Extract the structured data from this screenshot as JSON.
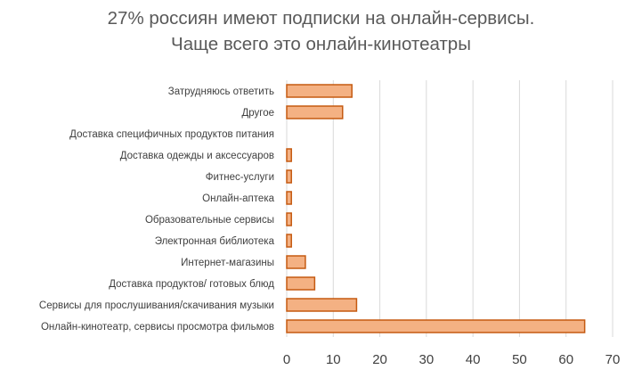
{
  "chart_data": {
    "type": "bar",
    "orientation": "horizontal",
    "title_lines": [
      "27% россиян имеют подписки на онлайн-сервисы.",
      "Чаще всего это онлайн-кинотеатры"
    ],
    "categories": [
      "Затрудняюсь ответить",
      "Другое",
      "Доставка специфичных продуктов питания",
      "Доставка одежды и аксессуаров",
      "Фитнес-услуги",
      "Онлайн-аптека",
      "Образовательные сервисы",
      "Электронная библиотека",
      "Интернет-магазины",
      "Доставка продуктов/ готовых блюд",
      "Сервисы для прослушивания/скачивания музыки",
      "Онлайн-кинотеатр, сервисы просмотра фильмов"
    ],
    "values": [
      14,
      12,
      0,
      1,
      1,
      1,
      1,
      1,
      4,
      6,
      15,
      64
    ],
    "xlim": [
      0,
      70
    ],
    "xticks": [
      0,
      10,
      20,
      30,
      40,
      50,
      60,
      70
    ],
    "grid": "vertical",
    "legend": "none",
    "bar_fill": "#F4B183",
    "bar_stroke": "#C55A11",
    "grid_color": "#D9D9D9"
  }
}
